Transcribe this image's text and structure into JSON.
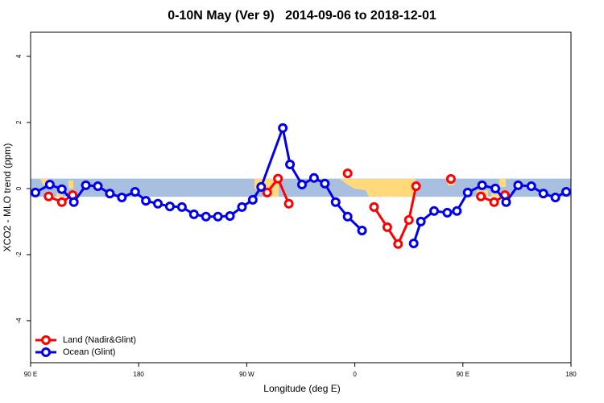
{
  "chart_data": {
    "type": "line",
    "title": "0-10N May (Ver 9)   2014-09-06 to 2018-12-01",
    "xlabel": "Longitude (deg E)",
    "ylabel": "XCO2 - MLO trend (ppm)",
    "xlim": [
      90,
      540
    ],
    "ylim": [
      -5.27,
      4.73
    ],
    "xticks": [
      {
        "value": 90,
        "label": "90 E"
      },
      180,
      {
        "value": 270,
        "label": "90 W"
      },
      {
        "value": 360,
        "label": "0"
      },
      {
        "value": 450,
        "label": "90 E"
      },
      {
        "value": 540,
        "label": "180"
      }
    ],
    "yticks": [
      -4,
      -2,
      0,
      2,
      4
    ],
    "band": [
      -0.25,
      0.3
    ],
    "band_color": "#a9bfdf",
    "legend": "bottom-left",
    "series": [
      {
        "name": "Land (Nadir&Glint)",
        "color": "#ff0000",
        "x": [
          105,
          116,
          125,
          200,
          287,
          296,
          305,
          330,
          354,
          365,
          376,
          387,
          396,
          405,
          411,
          425,
          440,
          452,
          465,
          476,
          485
        ],
        "values": [
          -0.24,
          -0.41,
          -0.2,
          null,
          -0.12,
          0.3,
          -0.46,
          null,
          0.46,
          null,
          -0.56,
          -1.17,
          -1.68,
          -0.95,
          0.07,
          null,
          0.29,
          null,
          -0.24,
          -0.41,
          -0.2
        ]
      },
      {
        "name": "Ocean (Glint)",
        "color": "#0000ee",
        "x": [
          94,
          106,
          116,
          126,
          136,
          146,
          156,
          166,
          177,
          186,
          196,
          206,
          216,
          226,
          236,
          246,
          256,
          266,
          275,
          282,
          300,
          306,
          316,
          326,
          335,
          344,
          354,
          366,
          388,
          409,
          415,
          426,
          437,
          445,
          454,
          466,
          477,
          486,
          496,
          507,
          517,
          527,
          536
        ],
        "values": [
          -0.12,
          0.12,
          -0.02,
          -0.41,
          0.1,
          0.07,
          -0.15,
          -0.27,
          -0.1,
          -0.37,
          -0.46,
          -0.54,
          -0.56,
          -0.78,
          -0.85,
          -0.85,
          -0.83,
          -0.56,
          -0.34,
          0.05,
          1.83,
          0.73,
          0.12,
          0.32,
          0.15,
          -0.41,
          -0.85,
          -1.27,
          null,
          -1.66,
          -1.0,
          -0.68,
          -0.73,
          -0.68,
          -0.12,
          0.1,
          0,
          -0.41,
          0.1,
          0.07,
          -0.15,
          -0.27,
          -0.1
        ]
      }
    ]
  }
}
